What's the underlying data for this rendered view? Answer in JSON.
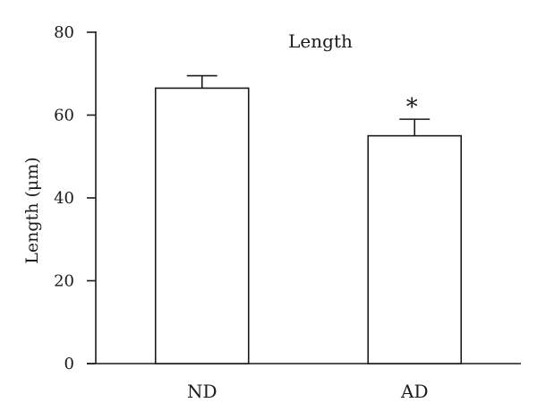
{
  "chart_data": {
    "type": "bar",
    "title": "Length",
    "xlabel": "",
    "ylabel": "Length (μm)",
    "categories": [
      "ND",
      "AD"
    ],
    "values": [
      66.5,
      55.0
    ],
    "error_upper": [
      69.5,
      59.0
    ],
    "annotations": [
      {
        "category": "AD",
        "text": "*"
      }
    ],
    "ylim": [
      0,
      80
    ],
    "yticks": [
      0,
      20,
      40,
      60,
      80
    ],
    "ytick_labels": [
      "0",
      "20",
      "40",
      "60",
      "80"
    ],
    "grid": false,
    "colors": {
      "bar_fill": "#ffffff",
      "bar_stroke": "#1a1a1a"
    }
  }
}
